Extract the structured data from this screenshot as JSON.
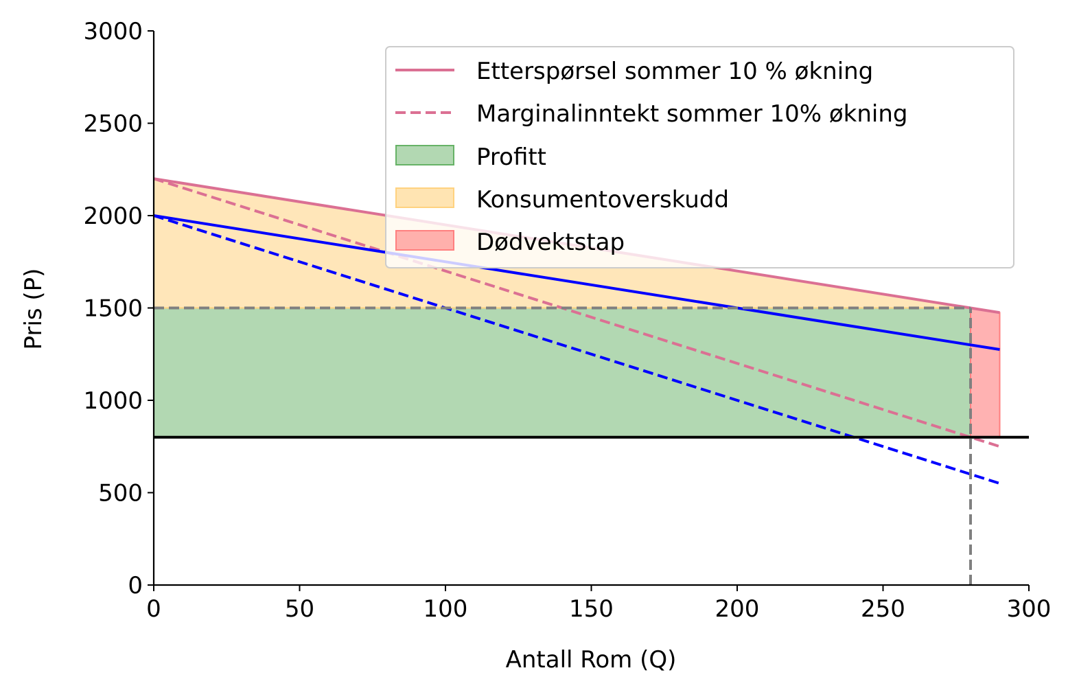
{
  "chart_data": {
    "type": "line",
    "title": "",
    "xlabel": "Antall Rom (Q)",
    "ylabel": "Pris (P)",
    "xlim": [
      0,
      300
    ],
    "ylim": [
      0,
      3000
    ],
    "x_ticks": [
      0,
      50,
      100,
      150,
      200,
      250,
      300
    ],
    "y_ticks": [
      0,
      500,
      1000,
      1500,
      2000,
      2500,
      3000
    ],
    "grid": false,
    "legend_position": "top-right",
    "colors": {
      "demand_summer": "#db7093",
      "base_curves": "#0000ff",
      "profit_fill": "#66b266",
      "consumer_fill": "#ffd27f",
      "deadweight_fill": "#ff7f7f",
      "cost_line": "#000000",
      "reference_lines": "#808080"
    },
    "series": [
      {
        "name": "Etterspørsel sommer 10 % økning",
        "style": "solid",
        "color": "#db7093",
        "x": [
          0,
          290
        ],
        "y": [
          2200,
          1475
        ]
      },
      {
        "name": "Marginalinntekt sommer 10% økning",
        "style": "dashed",
        "color": "#db7093",
        "x": [
          0,
          290
        ],
        "y": [
          2200,
          750
        ]
      },
      {
        "style": "solid",
        "color": "#0000ff",
        "x": [
          0,
          290
        ],
        "y": [
          2000,
          1275
        ]
      },
      {
        "style": "dashed",
        "color": "#0000ff",
        "x": [
          0,
          290
        ],
        "y": [
          2000,
          550
        ]
      },
      {
        "style": "solid",
        "color": "#000000",
        "x": [
          0,
          300
        ],
        "y": [
          800,
          800
        ]
      }
    ],
    "areas": [
      {
        "name": "Profitt",
        "color": "#66b266",
        "x": [
          0,
          280
        ],
        "y_low": 800,
        "y_high": 1500
      },
      {
        "name": "Konsumentoverskudd",
        "color": "#ffd27f",
        "x": [
          0,
          280
        ],
        "y_low": 1500,
        "y_high_start": 2200,
        "y_high_end": 1500
      },
      {
        "name": "Dødvektstap",
        "color": "#ff7f7f",
        "x": [
          280,
          290
        ],
        "y_low": 800,
        "y_high_start": 1500,
        "y_high_end": 1475
      }
    ],
    "reference_lines": [
      {
        "orientation": "horizontal",
        "y": 1500,
        "x_from": 0,
        "x_to": 280,
        "style": "dashed",
        "color": "#808080"
      },
      {
        "orientation": "vertical",
        "x": 280,
        "y_from": 0,
        "y_to": 1500,
        "style": "dashed",
        "color": "#808080"
      }
    ]
  }
}
